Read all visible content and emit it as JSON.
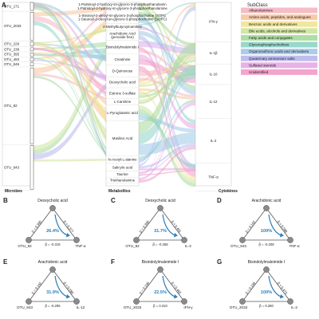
{
  "panel_a": {
    "letter": "A",
    "microbes_label": "Microbes",
    "metabolites_label": "Metabolites",
    "cytokines_label": "Cytokines",
    "microbes": [
      "OTU_171",
      "OTU_2033",
      "OTU_229",
      "OTU_238",
      "OTU_395",
      "OTU_493",
      "OTU_546",
      "OTU_82",
      "OTU_943"
    ],
    "metabolites": [
      "1-Palmitoyl-2-hydroxy-sn-glycero-3-phosphoethanolamine",
      "1-Stearoyl-2-oleoyl-sn-glycero-3-phosphocholine (SOPC)",
      "2-Methylbutyroylcarnitine",
      "Arachidonic Acid (peroxide free)",
      "Bisindolylmaleimide I",
      "Creatinine",
      "D-Quinovose",
      "Deoxycholic acid",
      "Estrone 3-sulfate",
      "L-Carnitine",
      "L-Pyroglutamic acid",
      "Maslinic Acid",
      "N-Acetyl-L-alanine",
      "Salicylic acid",
      "Taurine",
      "Triethanolamine"
    ],
    "cytokines": [
      "IFN-γ",
      "IL-1β",
      "IL-10",
      "IL-12",
      "IL-2",
      "TNF-α"
    ],
    "legend": {
      "title": "SubClass",
      "items": [
        {
          "label": "Alkanolamines",
          "color": "#f4b6c2"
        },
        {
          "label": "Amino acids, peptides, and analogues",
          "color": "#f7c59f"
        },
        {
          "label": "Benzoic acids and derivatives",
          "color": "#f2e394"
        },
        {
          "label": "Bile acids, alcohols and derivatives",
          "color": "#cfe39a"
        },
        {
          "label": "Fatty acids and conjugates",
          "color": "#a6d99a"
        },
        {
          "label": "Glycerophosphocholines",
          "color": "#8fd3c7"
        },
        {
          "label": "Organosulfonic acids and derivatives",
          "color": "#9ec9e8"
        },
        {
          "label": "Quaternary ammonium salts",
          "color": "#b9b6ec"
        },
        {
          "label": "Sulfated steroids",
          "color": "#e5a8e6"
        },
        {
          "label": "Unidentified",
          "color": "#f39bc7"
        }
      ]
    }
  },
  "triangles": [
    {
      "letter": "B",
      "top": "Deoxycholic acid",
      "left": "OTU_82",
      "right": "TNF-α",
      "beta_left": "β = 0.300",
      "beta_right": "β = 0.377",
      "beta_bottom": "β = -0.315",
      "pct": "26.4%"
    },
    {
      "letter": "C",
      "top": "Deoxycholic acid",
      "left": "OTU_82",
      "right": "IL-2",
      "beta_left": "β = 0.300",
      "beta_right": "β = 0.401",
      "beta_bottom": "β = -0.258",
      "pct": "31.7%"
    },
    {
      "letter": "D",
      "top": "Arachidonic acid",
      "left": "OTU_943",
      "right": "TNF-α",
      "beta_left": "β = 0.142",
      "beta_right": "β = 0.588",
      "beta_bottom": "β = -0.208",
      "pct": "100%"
    },
    {
      "letter": "E",
      "top": "Arachidonic acid",
      "left": "OTU_943",
      "right": "IL-12",
      "beta_left": "β = 0.142",
      "beta_right": "β = 0.580",
      "beta_bottom": "β = -0.295",
      "pct": "31.9%"
    },
    {
      "letter": "F",
      "top": "Bisindolylmaleimide I",
      "left": "OTU_2033",
      "right": "IFN-γ",
      "beta_left": "β = 0.198",
      "beta_right": "β = 0.465",
      "beta_bottom": "β = 0.310",
      "pct": "22.5%"
    },
    {
      "letter": "G",
      "top": "Bisindolylmaleimide I",
      "left": "OTU_2033",
      "right": "IL-2",
      "beta_left": "β = 0.198",
      "beta_right": "β = 0.473",
      "beta_bottom": "β = 0.280",
      "pct": "100%"
    }
  ]
}
